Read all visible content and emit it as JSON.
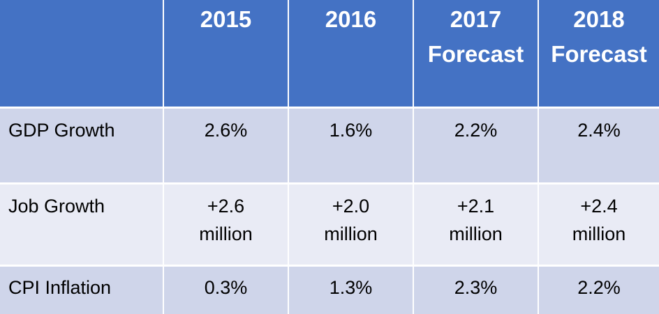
{
  "table": {
    "headers": [
      {
        "line1": "",
        "line2": ""
      },
      {
        "line1": "2015",
        "line2": ""
      },
      {
        "line1": "2016",
        "line2": ""
      },
      {
        "line1": "2017",
        "line2": "Forecast"
      },
      {
        "line1": "2018",
        "line2": "Forecast"
      }
    ],
    "rows": [
      {
        "label": "GDP Growth",
        "values": [
          {
            "line1": "2.6%",
            "line2": ""
          },
          {
            "line1": "1.6%",
            "line2": ""
          },
          {
            "line1": "2.2%",
            "line2": ""
          },
          {
            "line1": "2.4%",
            "line2": ""
          }
        ]
      },
      {
        "label": "Job Growth",
        "values": [
          {
            "line1": "+2.6",
            "line2": "million"
          },
          {
            "line1": "+2.0",
            "line2": "million"
          },
          {
            "line1": "+2.1",
            "line2": "million"
          },
          {
            "line1": "+2.4",
            "line2": "million"
          }
        ]
      },
      {
        "label": "CPI Inflation",
        "values": [
          {
            "line1": "0.3%",
            "line2": ""
          },
          {
            "line1": "1.3%",
            "line2": ""
          },
          {
            "line1": "2.3%",
            "line2": ""
          },
          {
            "line1": "2.2%",
            "line2": ""
          }
        ]
      }
    ],
    "colors": {
      "header_bg": "#4472c4",
      "band_dark": "#cfd5ea",
      "band_light": "#e9ebf5"
    }
  }
}
